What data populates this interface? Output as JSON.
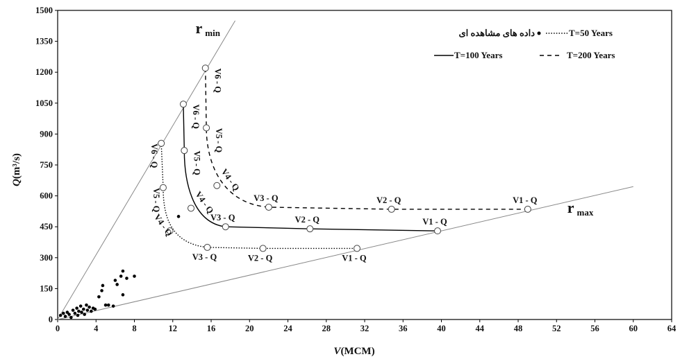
{
  "chart_data": {
    "type": "scatter",
    "xlabel": {
      "symbol": "V",
      "unit": "(MCM)"
    },
    "ylabel": {
      "symbol": "Q",
      "unit": "(m³/s)"
    },
    "xlim": [
      0,
      64
    ],
    "ylim": [
      0,
      1500
    ],
    "x_ticks": [
      0,
      4,
      8,
      12,
      16,
      20,
      24,
      28,
      32,
      36,
      40,
      44,
      48,
      52,
      56,
      60,
      64
    ],
    "y_ticks": [
      0,
      150,
      300,
      450,
      600,
      750,
      900,
      1050,
      1200,
      1350,
      1500
    ],
    "grid": false,
    "legend": {
      "placement": "top-right",
      "entries": [
        {
          "key": "observed",
          "label": "داده های مشاهده ای",
          "style": "dot"
        },
        {
          "key": "T50",
          "label": "T=50 Years",
          "style": "dotted"
        },
        {
          "key": "T100",
          "label": "T=100 Years",
          "style": "solid"
        },
        {
          "key": "T200",
          "label": "T=200 Years",
          "style": "dashed"
        }
      ]
    },
    "reference_lines": [
      {
        "name": "r",
        "subscript": "min",
        "from": [
          0,
          0
        ],
        "to": [
          18.5,
          1450
        ]
      },
      {
        "name": "r",
        "subscript": "max",
        "from": [
          0,
          0
        ],
        "to": [
          60,
          645
        ]
      }
    ],
    "observed": [
      [
        0.3,
        20
      ],
      [
        0.6,
        30
      ],
      [
        0.8,
        15
      ],
      [
        1.0,
        35
      ],
      [
        1.2,
        25
      ],
      [
        1.4,
        10
      ],
      [
        1.6,
        45
      ],
      [
        1.8,
        30
      ],
      [
        2.0,
        55
      ],
      [
        2.1,
        20
      ],
      [
        2.2,
        40
      ],
      [
        2.4,
        65
      ],
      [
        2.5,
        35
      ],
      [
        2.7,
        50
      ],
      [
        2.8,
        25
      ],
      [
        3.0,
        70
      ],
      [
        3.1,
        45
      ],
      [
        3.3,
        60
      ],
      [
        3.5,
        40
      ],
      [
        3.7,
        55
      ],
      [
        3.9,
        50
      ],
      [
        4.3,
        110
      ],
      [
        4.6,
        140
      ],
      [
        4.7,
        165
      ],
      [
        5.0,
        70
      ],
      [
        5.3,
        70
      ],
      [
        5.8,
        65
      ],
      [
        6.0,
        190
      ],
      [
        6.2,
        170
      ],
      [
        6.6,
        210
      ],
      [
        6.8,
        235
      ],
      [
        6.8,
        120
      ],
      [
        7.2,
        200
      ],
      [
        8.0,
        210
      ],
      [
        12.6,
        500
      ]
    ],
    "series": [
      {
        "name": "T=50 Years",
        "style": "dotted",
        "points": [
          {
            "label": "V6 - Q",
            "x": 10.8,
            "y": 855,
            "orient": "vertical",
            "side": "left"
          },
          {
            "label": "V5 - Q",
            "x": 11.0,
            "y": 640,
            "orient": "vertical",
            "side": "left"
          },
          {
            "label": "V4 - Q",
            "x": 11.7,
            "y": 430,
            "orient": "diag",
            "side": "left"
          },
          {
            "label": "V3 - Q",
            "x": 15.6,
            "y": 350,
            "orient": "horizontal",
            "side": "below"
          },
          {
            "label": "V2 - Q",
            "x": 21.4,
            "y": 345,
            "orient": "horizontal",
            "side": "below"
          },
          {
            "label": "V1 - Q",
            "x": 31.2,
            "y": 345,
            "orient": "horizontal",
            "side": "below"
          }
        ]
      },
      {
        "name": "T=100 Years",
        "style": "solid",
        "points": [
          {
            "label": "V6 - Q",
            "x": 13.1,
            "y": 1045,
            "orient": "vertical",
            "side": "right"
          },
          {
            "label": "V5 - Q",
            "x": 13.2,
            "y": 820,
            "orient": "vertical",
            "side": "right"
          },
          {
            "label": "V4 - Q",
            "x": 13.9,
            "y": 540,
            "orient": "diag",
            "side": "right"
          },
          {
            "label": "V3 - Q",
            "x": 17.5,
            "y": 450,
            "orient": "horizontal",
            "side": "above"
          },
          {
            "label": "V2 - Q",
            "x": 26.3,
            "y": 440,
            "orient": "horizontal",
            "side": "above"
          },
          {
            "label": "V1 - Q",
            "x": 39.6,
            "y": 430,
            "orient": "horizontal",
            "side": "above"
          }
        ]
      },
      {
        "name": "T=200 Years",
        "style": "dashed",
        "points": [
          {
            "label": "V6 - Q",
            "x": 15.4,
            "y": 1220,
            "orient": "vertical",
            "side": "right"
          },
          {
            "label": "V5 - Q",
            "x": 15.5,
            "y": 930,
            "orient": "vertical",
            "side": "right"
          },
          {
            "label": "V4 - Q",
            "x": 16.6,
            "y": 650,
            "orient": "diag",
            "side": "right"
          },
          {
            "label": "V3 - Q",
            "x": 22.0,
            "y": 545,
            "orient": "horizontal",
            "side": "above"
          },
          {
            "label": "V2 - Q",
            "x": 34.8,
            "y": 535,
            "orient": "horizontal",
            "side": "above"
          },
          {
            "label": "V1 - Q",
            "x": 49.0,
            "y": 535,
            "orient": "horizontal",
            "side": "above"
          }
        ]
      }
    ]
  }
}
